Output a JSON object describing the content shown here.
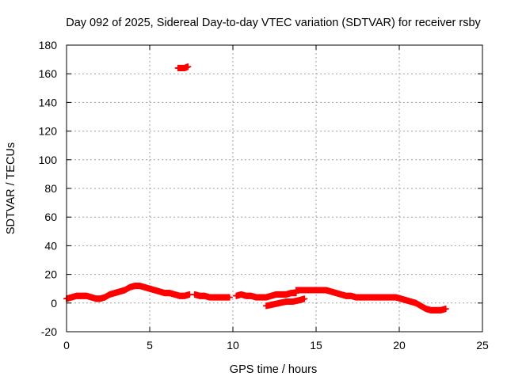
{
  "chart_data": {
    "type": "scatter",
    "title": "Day 092 of 2025, Sidereal Day-to-day VTEC variation (SDTVAR) for receiver rsby",
    "xlabel": "GPS time / hours",
    "ylabel": "SDTVAR / TECUs",
    "xlim": [
      0,
      25
    ],
    "ylim": [
      -20,
      180
    ],
    "xticks": [
      0,
      5,
      10,
      15,
      20,
      25
    ],
    "yticks": [
      -20,
      0,
      20,
      40,
      60,
      80,
      100,
      120,
      140,
      160,
      180
    ],
    "grid": true,
    "marker": "plus",
    "series": [
      {
        "name": "SDTVAR",
        "color": "#ff0000",
        "segments": [
          {
            "x": [
              0.0,
              0.3,
              0.6,
              0.9,
              1.2,
              1.5,
              1.8,
              2.0,
              2.3,
              2.6,
              2.9,
              3.2,
              3.5,
              3.8,
              4.1,
              4.4,
              4.7,
              5.0,
              5.3,
              5.6,
              5.9,
              6.2,
              6.5,
              6.8,
              7.1,
              7.4
            ],
            "y": [
              3,
              4,
              5,
              5,
              5,
              4,
              3,
              3,
              4,
              6,
              7,
              8,
              9,
              11,
              12,
              12,
              11,
              10,
              9,
              8,
              7,
              7,
              6,
              5,
              5,
              6
            ]
          },
          {
            "x": [
              7.7,
              8.0,
              8.3,
              8.6,
              8.9,
              9.2,
              9.5,
              9.8
            ],
            "y": [
              6,
              5,
              5,
              4,
              4,
              4,
              4,
              4
            ]
          },
          {
            "x": [
              10.2,
              10.5,
              10.8,
              11.1,
              11.4,
              11.7,
              12.0,
              12.3,
              12.6,
              12.9,
              13.2,
              13.5,
              13.8
            ],
            "y": [
              5,
              6,
              5,
              5,
              4,
              4,
              4,
              5,
              6,
              6,
              6,
              7,
              7
            ]
          },
          {
            "x": [
              12.0,
              12.4,
              12.8,
              13.2,
              13.6,
              14.0,
              14.3
            ],
            "y": [
              -2,
              -1,
              0,
              1,
              1,
              2,
              3
            ]
          },
          {
            "x": [
              13.8,
              14.1,
              14.4,
              14.7,
              15.0,
              15.3,
              15.6,
              15.9,
              16.2,
              16.5,
              16.8,
              17.1,
              17.4,
              17.7
            ],
            "y": [
              9,
              9,
              9,
              9,
              9,
              9,
              9,
              8,
              7,
              6,
              5,
              5,
              4,
              4
            ]
          },
          {
            "x": [
              17.7,
              18.0,
              18.3,
              18.6,
              18.9,
              19.2,
              19.5,
              19.8,
              20.1,
              20.4,
              20.7,
              21.0,
              21.3,
              21.6,
              21.9,
              22.2,
              22.5,
              22.8
            ],
            "y": [
              4,
              4,
              4,
              4,
              4,
              4,
              4,
              4,
              3,
              2,
              1,
              0,
              -2,
              -4,
              -5,
              -5,
              -5,
              -4
            ]
          },
          {
            "x": [
              6.7,
              6.9,
              7.1,
              7.3
            ],
            "y": [
              164,
              164,
              164,
              165
            ]
          }
        ]
      }
    ]
  }
}
